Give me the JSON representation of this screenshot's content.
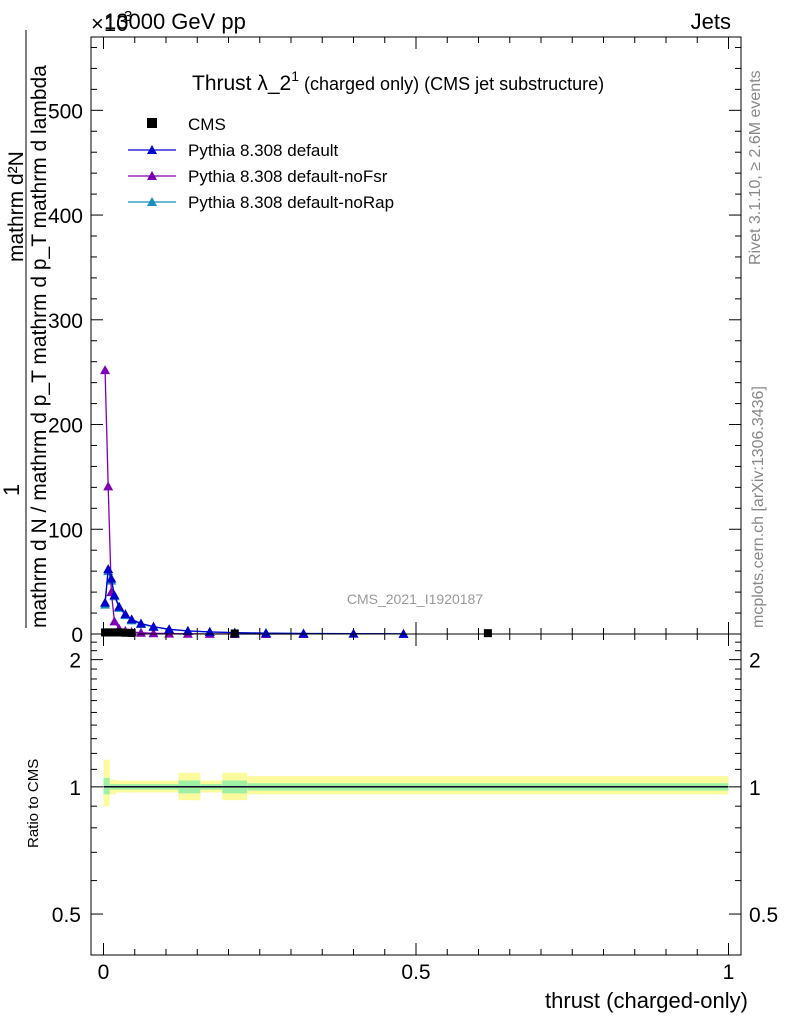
{
  "header": {
    "exponent_label": "×10",
    "exponent_power": "3",
    "energy": "13000 GeV pp",
    "process": "Jets"
  },
  "side_labels": {
    "rivet": "Rivet 3.1.10, ≥ 2.6M events",
    "mcplots": "mcplots.cern.ch [arXiv:1306.3436]"
  },
  "chart_data": [
    {
      "type": "line",
      "title_main": "Thrust λ_2",
      "title_sup": "1",
      "title_rest": " (charged only) (CMS jet substructure)",
      "analysis_label": "CMS_2021_I1920187",
      "ylabel_num": "mathrm d²N",
      "ylabel_den": "mathrm d N / mathrm d p_T mathrm d p_T mathrm d lambda",
      "ylabel_one": "1",
      "ylim": [
        0,
        570
      ],
      "xlim": [
        -0.02,
        1.02
      ],
      "y_ticks": [
        0,
        100,
        200,
        300,
        400,
        500
      ],
      "y_tick_labels": [
        "0",
        "100",
        "200",
        "300",
        "400",
        "500"
      ],
      "legend_position": "top-left",
      "legend": [
        {
          "name": "CMS",
          "color": "#000000",
          "marker": "square"
        },
        {
          "name": "Pythia 8.308 default",
          "color": "#0000cc",
          "marker": "triangle"
        },
        {
          "name": "Pythia 8.308 default-noFsr",
          "color": "#7f00b2",
          "marker": "triangle"
        },
        {
          "name": "Pythia 8.308 default-noRap",
          "color": "#1a8fb8",
          "marker": "triangle"
        }
      ],
      "data_series": {
        "cms": {
          "x": [
            0.0025,
            0.0075,
            0.0125,
            0.0175,
            0.0225,
            0.0275,
            0.035,
            0.045,
            0.21,
            0.615
          ],
          "y": [
            1.5,
            1.5,
            1.5,
            1.5,
            1.5,
            1.5,
            1.2,
            1.0,
            0.5,
            0.8
          ]
        },
        "default": {
          "x": [
            0.0025,
            0.0075,
            0.0125,
            0.0175,
            0.025,
            0.035,
            0.045,
            0.06,
            0.08,
            0.105,
            0.135,
            0.17,
            0.21,
            0.26,
            0.32,
            0.4,
            0.48
          ],
          "y": [
            30,
            62,
            53,
            37,
            26,
            19,
            14,
            10,
            7,
            4.5,
            3,
            2,
            1.3,
            0.8,
            0.5,
            0.3,
            0.1
          ]
        },
        "noFsr": {
          "x": [
            0.0025,
            0.0075,
            0.0125,
            0.0175,
            0.025,
            0.035,
            0.045,
            0.06,
            0.08,
            0.105,
            0.135,
            0.17,
            0.21,
            0.26,
            0.32
          ],
          "y": [
            252,
            141,
            40,
            12,
            5,
            3,
            2,
            1.2,
            0.7,
            0.4,
            0.2,
            0.1,
            0.05,
            0.02,
            0.01
          ]
        },
        "noRap": {
          "x": [
            0.0025,
            0.0075,
            0.0125,
            0.0175,
            0.025,
            0.035,
            0.045,
            0.06,
            0.08,
            0.105,
            0.135,
            0.17,
            0.21,
            0.26,
            0.32,
            0.4,
            0.48
          ],
          "y": [
            28,
            60,
            51,
            36,
            25,
            18,
            13,
            9.5,
            6.8,
            4.3,
            2.9,
            1.9,
            1.2,
            0.8,
            0.5,
            0.3,
            0.1
          ]
        }
      }
    },
    {
      "type": "line",
      "ylabel": "Ratio to CMS",
      "xlabel": "thrust (charged-only)",
      "ylim": [
        0.4,
        2.3
      ],
      "xlim": [
        -0.02,
        1.02
      ],
      "log_y": true,
      "y_ticks": [
        0.5,
        1,
        2
      ],
      "y_tick_labels": [
        "0.5",
        "1",
        "2"
      ],
      "x_ticks": [
        0,
        0.5,
        1
      ],
      "x_tick_labels": [
        "0",
        "0.5",
        "1"
      ],
      "bands": [
        {
          "x0": 0.0,
          "x1": 0.01,
          "yellow": [
            0.9,
            1.16
          ],
          "green": [
            0.96,
            1.05
          ]
        },
        {
          "x0": 0.01,
          "x1": 0.02,
          "yellow": [
            0.96,
            1.04
          ],
          "green": [
            0.985,
            1.015
          ]
        },
        {
          "x0": 0.02,
          "x1": 0.12,
          "yellow": [
            0.97,
            1.035
          ],
          "green": [
            0.985,
            1.015
          ]
        },
        {
          "x0": 0.12,
          "x1": 0.155,
          "yellow": [
            0.93,
            1.08
          ],
          "green": [
            0.965,
            1.035
          ]
        },
        {
          "x0": 0.155,
          "x1": 0.19,
          "yellow": [
            0.97,
            1.035
          ],
          "green": [
            0.985,
            1.015
          ]
        },
        {
          "x0": 0.19,
          "x1": 0.23,
          "yellow": [
            0.93,
            1.08
          ],
          "green": [
            0.965,
            1.035
          ]
        },
        {
          "x0": 0.23,
          "x1": 1.0,
          "yellow": [
            0.96,
            1.06
          ],
          "green": [
            0.98,
            1.02
          ]
        }
      ]
    }
  ]
}
